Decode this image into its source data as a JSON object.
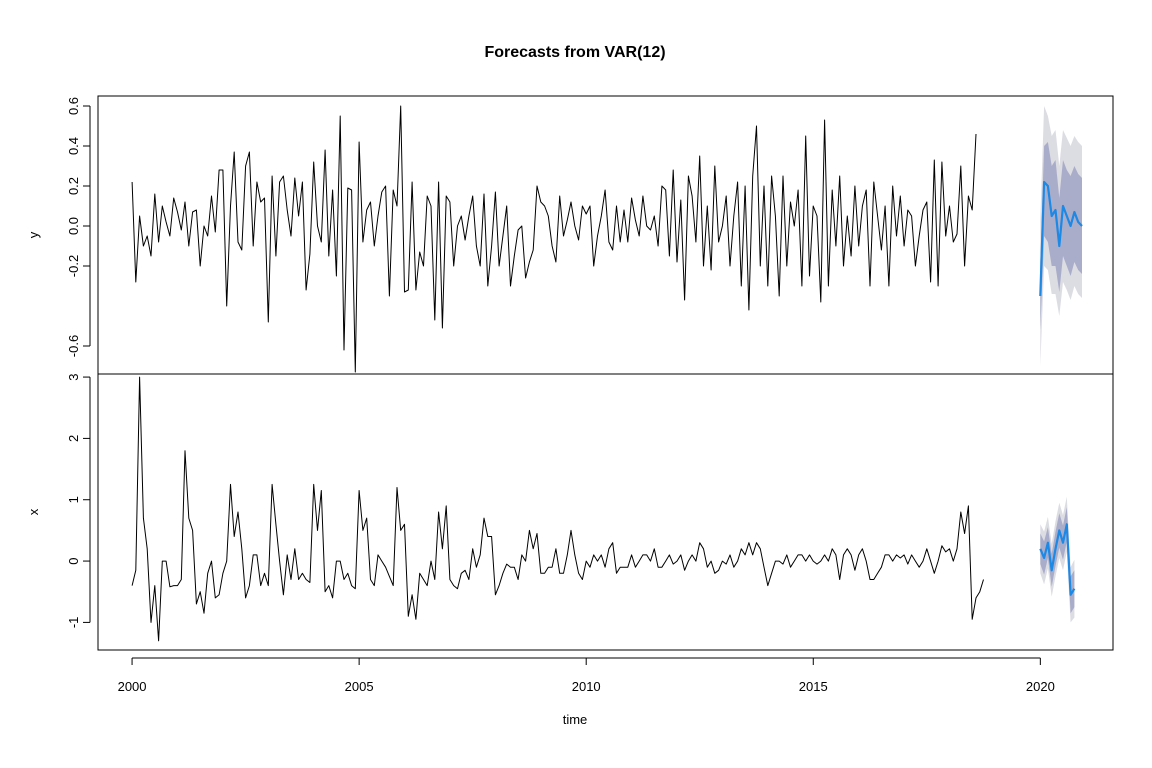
{
  "chart_data": {
    "type": "line",
    "title": "Forecasts from VAR(12)",
    "xlabel": "time",
    "x_ticks": [
      "2000",
      "2005",
      "2010",
      "2015",
      "2020"
    ],
    "x_range": [
      1999.25,
      2021.6
    ],
    "history_start": 2000.0,
    "history_step": 0.08333,
    "forecast_start": 2020.0,
    "forecast_step": 0.08333,
    "colors": {
      "history": "#000000",
      "forecast": "#1E88E5",
      "band80": "#A9ADC9",
      "band95": "#DCDCE3"
    },
    "panels": [
      {
        "name": "y",
        "ylabel": "y",
        "ylim": [
          -0.74,
          0.65
        ],
        "y_ticks": [
          "-0.6",
          "-0.2",
          "0.0",
          "0.2",
          "0.4",
          "0.6"
        ],
        "y_tick_values": [
          -0.6,
          -0.2,
          0.0,
          0.2,
          0.4,
          0.6
        ],
        "history": [
          0.22,
          -0.28,
          0.05,
          -0.1,
          -0.05,
          -0.15,
          0.16,
          -0.08,
          0.1,
          0.02,
          -0.05,
          0.14,
          0.07,
          -0.02,
          0.12,
          -0.1,
          0.07,
          0.08,
          -0.2,
          0.0,
          -0.05,
          0.15,
          -0.03,
          0.28,
          0.28,
          -0.4,
          0.1,
          0.37,
          -0.08,
          -0.12,
          0.3,
          0.37,
          -0.1,
          0.22,
          0.12,
          0.14,
          -0.48,
          0.25,
          -0.15,
          0.22,
          0.25,
          0.08,
          -0.05,
          0.24,
          0.05,
          0.22,
          -0.32,
          -0.14,
          0.32,
          0.0,
          -0.08,
          0.38,
          -0.15,
          0.18,
          -0.25,
          0.55,
          -0.62,
          0.19,
          0.18,
          -0.73,
          0.42,
          -0.08,
          0.08,
          0.12,
          -0.1,
          0.05,
          0.17,
          0.2,
          -0.35,
          0.18,
          0.1,
          0.6,
          -0.33,
          -0.32,
          0.22,
          -0.32,
          -0.13,
          -0.2,
          0.15,
          0.1,
          -0.47,
          0.22,
          -0.51,
          0.15,
          0.12,
          -0.2,
          0.0,
          0.05,
          -0.07,
          0.05,
          0.15,
          -0.1,
          -0.2,
          0.16,
          -0.3,
          -0.1,
          0.17,
          -0.2,
          -0.05,
          0.1,
          -0.3,
          -0.15,
          -0.02,
          0.0,
          -0.26,
          -0.18,
          -0.12,
          0.2,
          0.12,
          0.1,
          0.05,
          -0.1,
          -0.18,
          0.15,
          -0.05,
          0.03,
          0.12,
          0.0,
          -0.07,
          0.1,
          0.06,
          0.1,
          -0.2,
          -0.05,
          0.05,
          0.18,
          -0.08,
          -0.12,
          0.1,
          -0.08,
          0.08,
          -0.08,
          0.14,
          0.03,
          -0.05,
          0.15,
          0.0,
          -0.02,
          0.05,
          -0.1,
          0.2,
          0.18,
          -0.15,
          0.28,
          -0.18,
          0.13,
          -0.37,
          0.25,
          0.15,
          -0.08,
          0.35,
          -0.2,
          0.1,
          -0.22,
          0.3,
          -0.08,
          0.0,
          0.15,
          -0.2,
          0.05,
          0.22,
          -0.3,
          0.2,
          -0.42,
          0.25,
          0.5,
          -0.2,
          0.2,
          -0.3,
          0.25,
          0.05,
          -0.35,
          0.25,
          -0.2,
          0.12,
          0.0,
          0.18,
          -0.3,
          0.45,
          -0.25,
          0.1,
          0.05,
          -0.38,
          0.53,
          -0.3,
          0.18,
          -0.1,
          0.25,
          -0.2,
          0.05,
          -0.15,
          0.2,
          -0.1,
          0.1,
          0.18,
          -0.3,
          0.22,
          0.05,
          -0.12,
          0.1,
          -0.3,
          0.2,
          -0.05,
          0.15,
          -0.1,
          0.08,
          0.05,
          -0.2,
          -0.05,
          0.08,
          0.12,
          -0.28,
          0.33,
          -0.3,
          0.32,
          -0.05,
          0.1,
          -0.08,
          -0.04,
          0.3,
          -0.2,
          0.15,
          0.08,
          0.46
        ],
        "forecast": [
          -0.35,
          0.22,
          0.2,
          0.05,
          0.08,
          -0.1,
          0.1,
          0.05,
          0.0,
          0.07,
          0.02,
          0.0
        ],
        "lower80": [
          -0.52,
          -0.05,
          -0.08,
          -0.2,
          -0.2,
          -0.33,
          -0.15,
          -0.2,
          -0.25,
          -0.18,
          -0.22,
          -0.24
        ],
        "upper80": [
          -0.18,
          0.4,
          0.42,
          0.3,
          0.33,
          0.14,
          0.33,
          0.28,
          0.25,
          0.3,
          0.26,
          0.24
        ],
        "lower95": [
          -0.7,
          -0.2,
          -0.22,
          -0.34,
          -0.34,
          -0.45,
          -0.28,
          -0.32,
          -0.37,
          -0.3,
          -0.34,
          -0.36
        ],
        "upper95": [
          0.03,
          0.6,
          0.55,
          0.45,
          0.48,
          0.3,
          0.48,
          0.44,
          0.4,
          0.45,
          0.42,
          0.4
        ]
      },
      {
        "name": "x",
        "ylabel": "x",
        "ylim": [
          -1.45,
          3.05
        ],
        "y_ticks": [
          "-1",
          "0",
          "1",
          "2",
          "3"
        ],
        "y_tick_values": [
          -1,
          0,
          1,
          2,
          3
        ],
        "history": [
          -0.4,
          -0.15,
          3.0,
          0.7,
          0.2,
          -1.0,
          -0.4,
          -1.3,
          0.0,
          0.0,
          -0.42,
          -0.4,
          -0.4,
          -0.3,
          1.8,
          0.7,
          0.5,
          -0.7,
          -0.5,
          -0.85,
          -0.2,
          0.0,
          -0.6,
          -0.55,
          -0.2,
          0.0,
          1.25,
          0.4,
          0.8,
          0.2,
          -0.6,
          -0.4,
          0.1,
          0.1,
          -0.4,
          -0.2,
          -0.4,
          1.25,
          0.6,
          0.0,
          -0.55,
          0.1,
          -0.3,
          0.2,
          -0.3,
          -0.2,
          -0.3,
          -0.35,
          1.25,
          0.5,
          1.15,
          -0.5,
          -0.4,
          -0.6,
          0.0,
          0.0,
          -0.3,
          -0.2,
          -0.4,
          -0.45,
          1.15,
          0.5,
          0.7,
          -0.3,
          -0.4,
          0.1,
          0.0,
          -0.1,
          -0.25,
          -0.4,
          1.2,
          0.5,
          0.6,
          -0.9,
          -0.55,
          -0.95,
          -0.2,
          -0.3,
          -0.4,
          0.0,
          -0.3,
          0.8,
          0.2,
          0.9,
          -0.3,
          -0.4,
          -0.45,
          -0.2,
          -0.15,
          -0.3,
          0.2,
          -0.1,
          0.1,
          0.7,
          0.4,
          0.4,
          -0.55,
          -0.4,
          -0.2,
          -0.05,
          -0.1,
          -0.1,
          -0.3,
          0.1,
          0.0,
          0.5,
          0.2,
          0.45,
          -0.2,
          -0.2,
          -0.1,
          -0.1,
          0.2,
          -0.2,
          -0.2,
          0.1,
          0.5,
          0.1,
          -0.2,
          -0.3,
          0.0,
          -0.1,
          0.1,
          0.0,
          0.1,
          -0.1,
          0.2,
          0.3,
          -0.2,
          -0.1,
          -0.1,
          -0.1,
          0.1,
          -0.1,
          0.0,
          0.1,
          0.1,
          0.0,
          0.2,
          -0.1,
          -0.1,
          0.0,
          0.1,
          -0.05,
          0.0,
          0.1,
          -0.15,
          0.0,
          0.1,
          0.0,
          0.3,
          0.2,
          -0.1,
          0.0,
          -0.2,
          -0.15,
          0.0,
          -0.05,
          0.1,
          -0.1,
          0.0,
          0.2,
          0.1,
          0.3,
          0.1,
          0.3,
          0.2,
          -0.1,
          -0.4,
          -0.2,
          0.0,
          0.0,
          -0.05,
          0.1,
          -0.1,
          0.0,
          0.1,
          0.1,
          0.0,
          0.1,
          0.0,
          -0.05,
          0.0,
          0.1,
          0.0,
          0.2,
          0.1,
          -0.3,
          0.1,
          0.2,
          0.1,
          -0.15,
          0.1,
          0.2,
          0.0,
          -0.3,
          -0.3,
          -0.2,
          -0.1,
          0.1,
          0.1,
          0.0,
          0.1,
          0.05,
          0.1,
          -0.05,
          0.1,
          0.0,
          -0.1,
          0.0,
          0.2,
          0.0,
          -0.2,
          0.0,
          0.25,
          0.15,
          0.2,
          0.0,
          0.2,
          0.8,
          0.45,
          0.9,
          -0.95,
          -0.6,
          -0.5,
          -0.3
        ],
        "forecast": [
          0.2,
          0.05,
          0.3,
          -0.15,
          0.2,
          0.5,
          0.3,
          0.6,
          -0.55,
          -0.45
        ],
        "lower80": [
          -0.05,
          -0.22,
          0.05,
          -0.42,
          -0.08,
          0.22,
          0.02,
          0.32,
          -0.85,
          -0.75
        ],
        "upper80": [
          0.45,
          0.32,
          0.55,
          0.12,
          0.48,
          0.78,
          0.58,
          0.88,
          -0.25,
          -0.15
        ],
        "lower95": [
          -0.2,
          -0.38,
          -0.12,
          -0.58,
          -0.25,
          0.05,
          -0.15,
          0.15,
          -1.0,
          -0.92
        ],
        "upper95": [
          0.6,
          0.48,
          0.72,
          0.28,
          0.65,
          0.95,
          0.75,
          1.05,
          -0.1,
          0.02
        ]
      }
    ]
  }
}
